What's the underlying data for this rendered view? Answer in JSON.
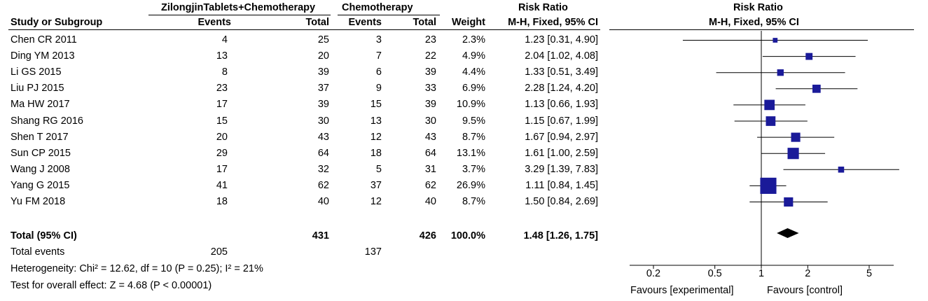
{
  "header": {
    "group1": "ZilongjinTablets+Chemotherapy",
    "group2": "Chemotherapy",
    "rr_title": "Risk Ratio",
    "study_or_subgroup": "Study or Subgroup",
    "events": "Events",
    "total": "Total",
    "weight": "Weight",
    "method": "M-H, Fixed, 95% CI"
  },
  "studies": [
    {
      "name": "Chen CR 2011",
      "e1": "4",
      "n1": "25",
      "e2": "3",
      "n2": "23",
      "weight": "2.3%",
      "ci_text": "1.23 [0.31, 4.90]",
      "rr": 1.23,
      "lo": 0.31,
      "hi": 4.9,
      "w": 2.3
    },
    {
      "name": "Ding YM 2013",
      "e1": "13",
      "n1": "20",
      "e2": "7",
      "n2": "22",
      "weight": "4.9%",
      "ci_text": "2.04 [1.02, 4.08]",
      "rr": 2.04,
      "lo": 1.02,
      "hi": 4.08,
      "w": 4.9
    },
    {
      "name": "Li GS 2015",
      "e1": "8",
      "n1": "39",
      "e2": "6",
      "n2": "39",
      "weight": "4.4%",
      "ci_text": "1.33 [0.51, 3.49]",
      "rr": 1.33,
      "lo": 0.51,
      "hi": 3.49,
      "w": 4.4
    },
    {
      "name": "Liu PJ 2015",
      "e1": "23",
      "n1": "37",
      "e2": "9",
      "n2": "33",
      "weight": "6.9%",
      "ci_text": "2.28 [1.24, 4.20]",
      "rr": 2.28,
      "lo": 1.24,
      "hi": 4.2,
      "w": 6.9
    },
    {
      "name": "Ma HW 2017",
      "e1": "17",
      "n1": "39",
      "e2": "15",
      "n2": "39",
      "weight": "10.9%",
      "ci_text": "1.13 [0.66, 1.93]",
      "rr": 1.13,
      "lo": 0.66,
      "hi": 1.93,
      "w": 10.9
    },
    {
      "name": "Shang RG 2016",
      "e1": "15",
      "n1": "30",
      "e2": "13",
      "n2": "30",
      "weight": "9.5%",
      "ci_text": "1.15 [0.67, 1.99]",
      "rr": 1.15,
      "lo": 0.67,
      "hi": 1.99,
      "w": 9.5
    },
    {
      "name": "Shen T 2017",
      "e1": "20",
      "n1": "43",
      "e2": "12",
      "n2": "43",
      "weight": "8.7%",
      "ci_text": "1.67 [0.94, 2.97]",
      "rr": 1.67,
      "lo": 0.94,
      "hi": 2.97,
      "w": 8.7
    },
    {
      "name": "Sun CP 2015",
      "e1": "29",
      "n1": "64",
      "e2": "18",
      "n2": "64",
      "weight": "13.1%",
      "ci_text": "1.61 [1.00, 2.59]",
      "rr": 1.61,
      "lo": 1.0,
      "hi": 2.59,
      "w": 13.1
    },
    {
      "name": "Wang J 2008",
      "e1": "17",
      "n1": "32",
      "e2": "5",
      "n2": "31",
      "weight": "3.7%",
      "ci_text": "3.29 [1.39, 7.83]",
      "rr": 3.29,
      "lo": 1.39,
      "hi": 7.83,
      "w": 3.7
    },
    {
      "name": "Yang G 2015",
      "e1": "41",
      "n1": "62",
      "e2": "37",
      "n2": "62",
      "weight": "26.9%",
      "ci_text": "1.11 [0.84, 1.45]",
      "rr": 1.11,
      "lo": 0.84,
      "hi": 1.45,
      "w": 26.9
    },
    {
      "name": "Yu FM 2018",
      "e1": "18",
      "n1": "40",
      "e2": "12",
      "n2": "40",
      "weight": "8.7%",
      "ci_text": "1.50 [0.84, 2.69]",
      "rr": 1.5,
      "lo": 0.84,
      "hi": 2.69,
      "w": 8.7
    }
  ],
  "total": {
    "label": "Total (95% CI)",
    "n1": "431",
    "n2": "426",
    "weight": "100.0%",
    "ci_text": "1.48 [1.26, 1.75]",
    "rr": 1.48,
    "lo": 1.26,
    "hi": 1.75
  },
  "total_events": {
    "label": "Total events",
    "e1": "205",
    "e2": "137"
  },
  "heterogeneity": "Heterogeneity: Chi² = 12.62, df = 10 (P = 0.25); I² = 21%",
  "overall_effect": "Test for overall effect: Z = 4.68 (P < 0.00001)",
  "axis": {
    "ticks": [
      0.2,
      0.5,
      1,
      2,
      5
    ],
    "tick_labels": [
      "0.2",
      "0.5",
      "1",
      "2",
      "5"
    ],
    "min": 0.14,
    "max": 7.2,
    "scale": "log",
    "favours_left": "Favours [experimental]",
    "favours_right": "Favours [control]"
  },
  "colors": {
    "marker": "#1a1a99",
    "line": "#000000"
  },
  "chart_data": {
    "type": "forest",
    "categories": [
      "Chen CR 2011",
      "Ding YM 2013",
      "Li GS 2015",
      "Liu PJ 2015",
      "Ma HW 2017",
      "Shang RG 2016",
      "Shen T 2017",
      "Sun CP 2015",
      "Wang J 2008",
      "Yang G 2015",
      "Yu FM 2018"
    ],
    "series": [
      {
        "name": "Risk Ratio",
        "values": [
          1.23,
          2.04,
          1.33,
          2.28,
          1.13,
          1.15,
          1.67,
          1.61,
          3.29,
          1.11,
          1.5
        ]
      }
    ],
    "ci_lower": [
      0.31,
      1.02,
      0.51,
      1.24,
      0.66,
      0.67,
      0.94,
      1.0,
      1.39,
      0.84,
      0.84
    ],
    "ci_upper": [
      4.9,
      4.08,
      3.49,
      4.2,
      1.93,
      1.99,
      2.97,
      2.59,
      7.83,
      1.45,
      2.69
    ],
    "weights": [
      2.3,
      4.9,
      4.4,
      6.9,
      10.9,
      9.5,
      8.7,
      13.1,
      3.7,
      26.9,
      8.7
    ],
    "pooled": {
      "rr": 1.48,
      "lo": 1.26,
      "hi": 1.75
    },
    "title": "Risk Ratio",
    "xlabel": "M-H, Fixed, 95% CI",
    "xscale": "log",
    "xticks": [
      0.2,
      0.5,
      1,
      2,
      5
    ]
  }
}
